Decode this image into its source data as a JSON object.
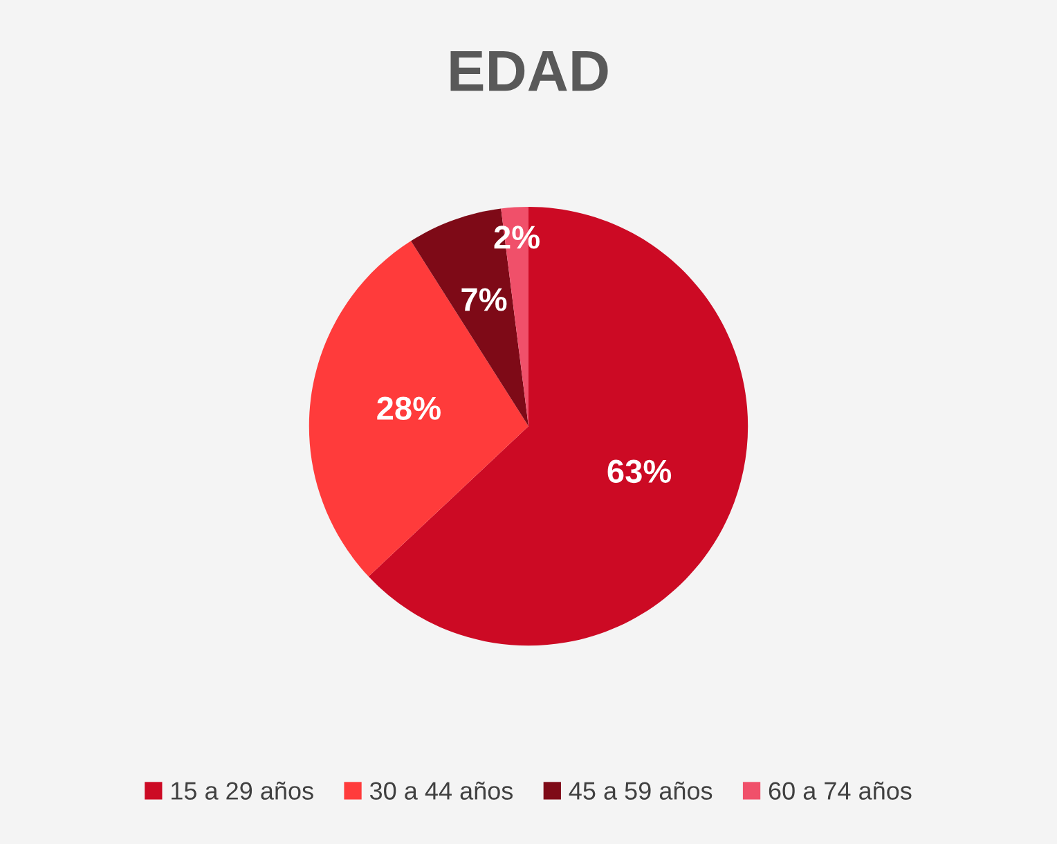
{
  "chart_data": {
    "type": "pie",
    "title": "EDAD",
    "categories": [
      "15 a 29 años",
      "30 a 44 años",
      "45 a 59 años",
      "60 a 74 años"
    ],
    "values": [
      63,
      28,
      7,
      2
    ],
    "value_labels": [
      "63%",
      "28%",
      "7%",
      "2%"
    ],
    "colors": [
      "#cc0a24",
      "#ff3b3b",
      "#7e0a17",
      "#f0506a"
    ],
    "legend": "bottom"
  }
}
